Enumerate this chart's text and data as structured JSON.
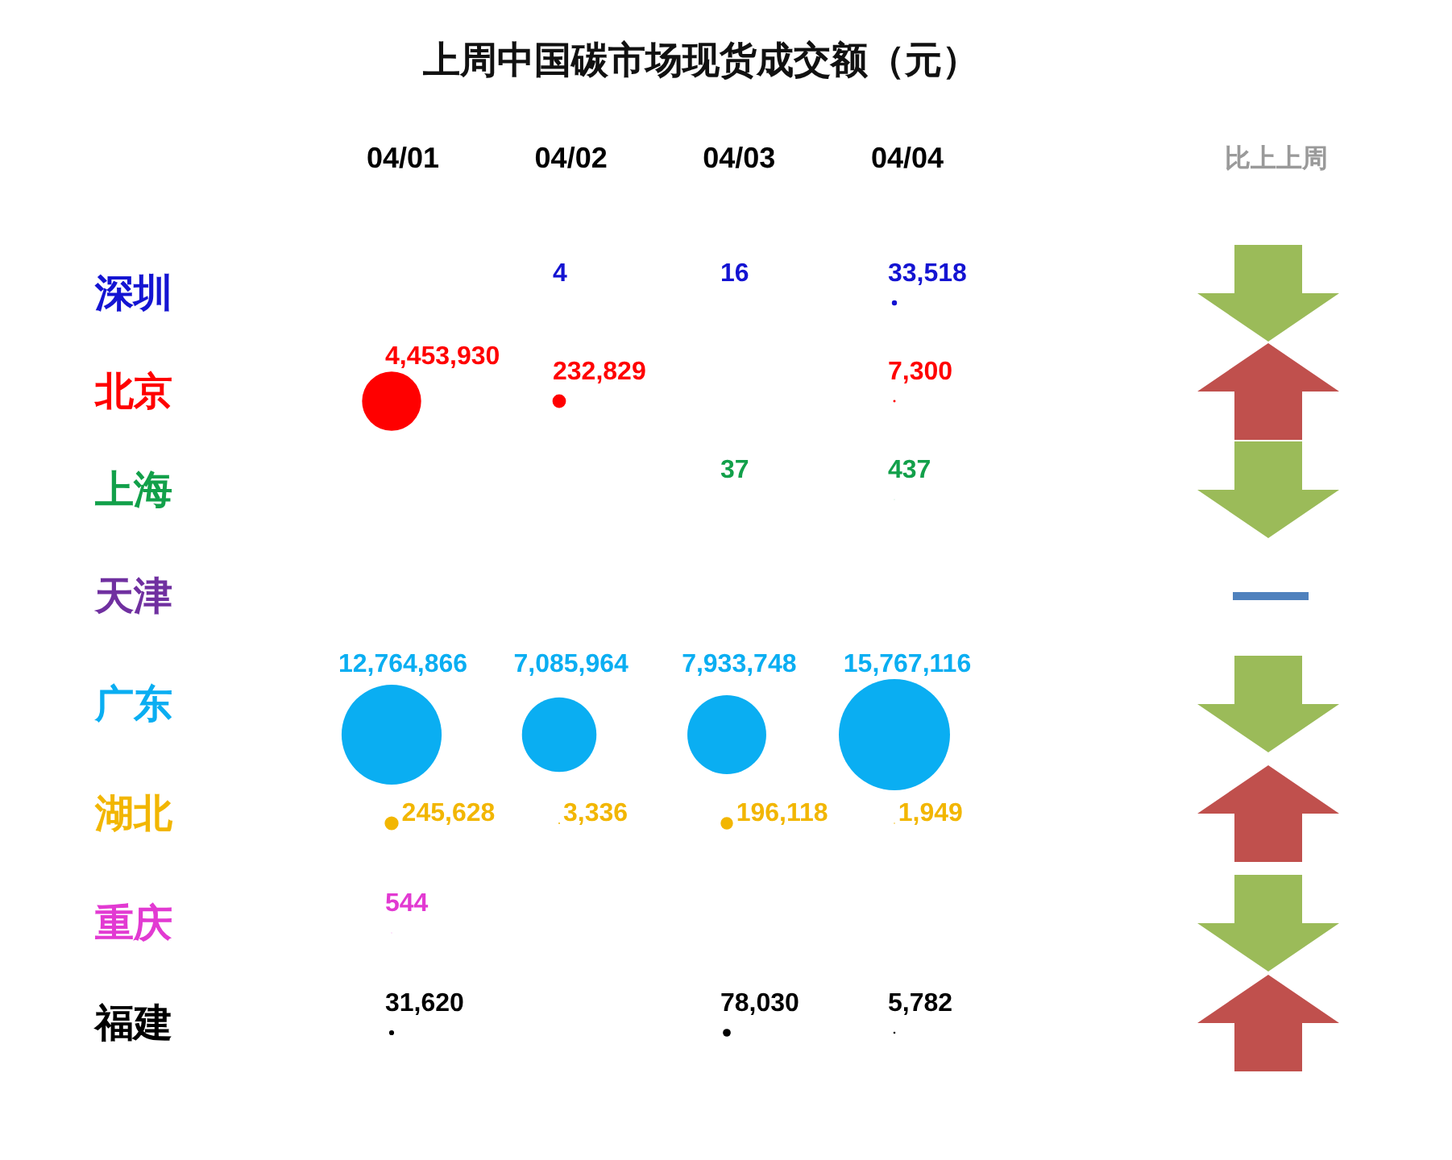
{
  "chart_data": {
    "type": "heatmap",
    "title": "上周中国碳市场现货成交额（元）",
    "categories": [
      "04/01",
      "04/02",
      "04/03",
      "04/04"
    ],
    "y_categories": [
      "深圳",
      "北京",
      "上海",
      "天津",
      "广东",
      "湖北",
      "重庆",
      "福建"
    ],
    "cells": [
      [
        null,
        4,
        16,
        33518
      ],
      [
        4453930,
        232829,
        null,
        7300
      ],
      [
        null,
        null,
        37,
        437
      ],
      [
        null,
        null,
        null,
        null
      ],
      [
        12764866,
        7085964,
        7933748,
        15767116
      ],
      [
        245628,
        3336,
        196118,
        1949
      ],
      [
        544,
        null,
        null,
        null
      ],
      [
        31620,
        null,
        78030,
        5782
      ]
    ],
    "cell_labels": [
      [
        null,
        "4",
        "16",
        "33,518"
      ],
      [
        "4,453,930",
        "232,829",
        null,
        "7,300"
      ],
      [
        null,
        null,
        "37",
        "437"
      ],
      [
        null,
        null,
        null,
        null
      ],
      [
        "12,764,866",
        "7,085,964",
        "7,933,748",
        "15,767,116"
      ],
      [
        "245,628",
        "3,336",
        "196,118",
        "1,949"
      ],
      [
        "544",
        null,
        null,
        null
      ],
      [
        "31,620",
        null,
        "78,030",
        "5,782"
      ]
    ],
    "colors": [
      "#1414d2",
      "#ff0000",
      "#12a04a",
      "#7030a0",
      "#0aaef2",
      "#f2b600",
      "#e23ad2",
      "#000000"
    ],
    "data_labels": true,
    "annotations": [
      "比上上周"
    ]
  }
}
